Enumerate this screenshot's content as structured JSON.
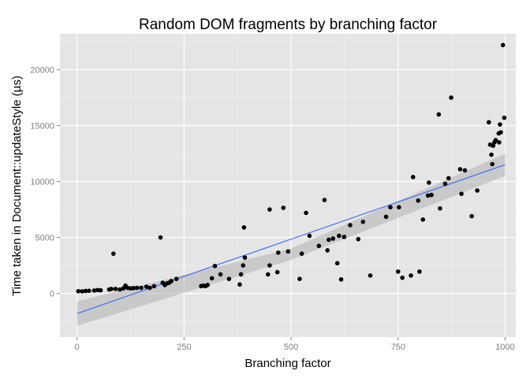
{
  "colors": {
    "panel": "#e5e5e5",
    "grid_major": "#ffffff",
    "grid_minor": "#f2f2f2",
    "point": "#000000",
    "fit_line": "#3366ff",
    "ribbon": "#b2b2b2"
  },
  "chart_data": {
    "type": "scatter",
    "title": "Random DOM fragments by branching factor",
    "xlabel": "Branching factor",
    "ylabel": "Time taken in Document::updateStyle (µs)",
    "xlim": [
      -40,
      1025
    ],
    "ylim": [
      -3900,
      23200
    ],
    "x_ticks": [
      0,
      250,
      500,
      750,
      1000
    ],
    "x_tick_labels": [
      "0",
      "250",
      "500",
      "750",
      "1000"
    ],
    "y_ticks": [
      0,
      5000,
      10000,
      15000,
      20000
    ],
    "y_tick_labels": [
      "0",
      "5000",
      "10000",
      "15000",
      "20000"
    ],
    "grid": true,
    "smooth": {
      "method": "linear",
      "line": [
        [
          0,
          -1800
        ],
        [
          1000,
          11500
        ]
      ],
      "ribbon_lower": [
        [
          0,
          -2900
        ],
        [
          500,
          3000
        ],
        [
          1000,
          10500
        ]
      ],
      "ribbon_upper": [
        [
          0,
          -700
        ],
        [
          500,
          4000
        ],
        [
          1000,
          12500
        ]
      ]
    },
    "points": [
      [
        3,
        200
      ],
      [
        12,
        180
      ],
      [
        20,
        220
      ],
      [
        28,
        230
      ],
      [
        40,
        260
      ],
      [
        48,
        300
      ],
      [
        55,
        280
      ],
      [
        75,
        350
      ],
      [
        80,
        400
      ],
      [
        85,
        3550
      ],
      [
        90,
        400
      ],
      [
        100,
        350
      ],
      [
        108,
        450
      ],
      [
        113,
        700
      ],
      [
        118,
        500
      ],
      [
        125,
        450
      ],
      [
        132,
        480
      ],
      [
        140,
        500
      ],
      [
        150,
        500
      ],
      [
        162,
        600
      ],
      [
        170,
        500
      ],
      [
        180,
        650
      ],
      [
        195,
        5000
      ],
      [
        200,
        950
      ],
      [
        205,
        750
      ],
      [
        210,
        900
      ],
      [
        215,
        950
      ],
      [
        220,
        1100
      ],
      [
        232,
        1300
      ],
      [
        290,
        650
      ],
      [
        295,
        700
      ],
      [
        300,
        650
      ],
      [
        305,
        750
      ],
      [
        315,
        1350
      ],
      [
        322,
        2450
      ],
      [
        335,
        1700
      ],
      [
        355,
        1300
      ],
      [
        380,
        800
      ],
      [
        383,
        1700
      ],
      [
        388,
        2500
      ],
      [
        392,
        3200
      ],
      [
        390,
        5900
      ],
      [
        446,
        1700
      ],
      [
        450,
        2500
      ],
      [
        450,
        7500
      ],
      [
        468,
        1900
      ],
      [
        470,
        3650
      ],
      [
        482,
        7650
      ],
      [
        493,
        3750
      ],
      [
        520,
        1300
      ],
      [
        525,
        3550
      ],
      [
        535,
        7200
      ],
      [
        543,
        5150
      ],
      [
        565,
        4250
      ],
      [
        578,
        8350
      ],
      [
        585,
        3850
      ],
      [
        588,
        4800
      ],
      [
        598,
        4900
      ],
      [
        608,
        2700
      ],
      [
        612,
        5150
      ],
      [
        617,
        1250
      ],
      [
        624,
        5050
      ],
      [
        638,
        6100
      ],
      [
        657,
        4850
      ],
      [
        668,
        6400
      ],
      [
        685,
        1600
      ],
      [
        722,
        6850
      ],
      [
        732,
        7700
      ],
      [
        752,
        7700
      ],
      [
        750,
        1950
      ],
      [
        760,
        1400
      ],
      [
        780,
        1600
      ],
      [
        785,
        10400
      ],
      [
        797,
        8300
      ],
      [
        800,
        1950
      ],
      [
        808,
        6600
      ],
      [
        820,
        8750
      ],
      [
        822,
        9900
      ],
      [
        828,
        8800
      ],
      [
        845,
        16000
      ],
      [
        848,
        7600
      ],
      [
        860,
        9800
      ],
      [
        868,
        10300
      ],
      [
        874,
        17500
      ],
      [
        895,
        11100
      ],
      [
        898,
        8900
      ],
      [
        906,
        11000
      ],
      [
        922,
        6900
      ],
      [
        935,
        9200
      ],
      [
        962,
        15300
      ],
      [
        965,
        13300
      ],
      [
        968,
        12400
      ],
      [
        970,
        11550
      ],
      [
        972,
        13200
      ],
      [
        975,
        13500
      ],
      [
        978,
        13700
      ],
      [
        985,
        14300
      ],
      [
        986,
        13500
      ],
      [
        988,
        15100
      ],
      [
        990,
        14400
      ],
      [
        995,
        22200
      ],
      [
        998,
        15700
      ]
    ]
  }
}
